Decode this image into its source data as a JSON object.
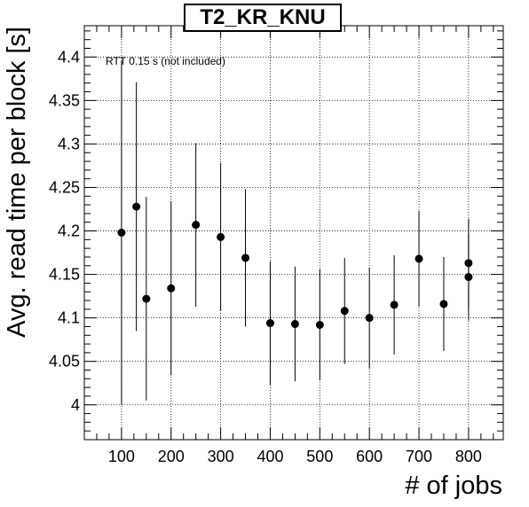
{
  "chart_data": {
    "type": "scatter",
    "title": "T2_KR_KNU",
    "xlabel": "# of jobs",
    "ylabel": "Avg. read time per block [s]",
    "annotation": "RTT 0.15 s (not included)",
    "xlim": [
      25,
      870
    ],
    "ylim": [
      3.96,
      4.436
    ],
    "xticks": [
      100,
      200,
      300,
      400,
      500,
      600,
      700,
      800
    ],
    "yticks": [
      4,
      4.05,
      4.1,
      4.15,
      4.2,
      4.25,
      4.3,
      4.35,
      4.4
    ],
    "ytick_labels": [
      "4",
      "4.05",
      "4.1",
      "4.15",
      "4.2",
      "4.25",
      "4.3",
      "4.35",
      "4.4"
    ],
    "grid": true,
    "colors": {
      "marker": "#000000",
      "grid": "#000000"
    },
    "points": [
      {
        "x": 100,
        "y": 4.198,
        "err": 0.198
      },
      {
        "x": 130,
        "y": 4.228,
        "err": 0.143
      },
      {
        "x": 150,
        "y": 4.122,
        "err": 0.117
      },
      {
        "x": 200,
        "y": 4.134,
        "err": 0.1
      },
      {
        "x": 250,
        "y": 4.207,
        "err": 0.094
      },
      {
        "x": 300,
        "y": 4.193,
        "err": 0.085
      },
      {
        "x": 350,
        "y": 4.169,
        "err": 0.079
      },
      {
        "x": 400,
        "y": 4.094,
        "err": 0.071
      },
      {
        "x": 450,
        "y": 4.093,
        "err": 0.066
      },
      {
        "x": 500,
        "y": 4.092,
        "err": 0.064
      },
      {
        "x": 550,
        "y": 4.108,
        "err": 0.061
      },
      {
        "x": 600,
        "y": 4.1,
        "err": 0.058
      },
      {
        "x": 650,
        "y": 4.115,
        "err": 0.057
      },
      {
        "x": 700,
        "y": 4.168,
        "err": 0.055
      },
      {
        "x": 750,
        "y": 4.116,
        "err": 0.054
      },
      {
        "x": 800,
        "y": 4.147,
        "err": 0.05
      },
      {
        "x": 800,
        "y": 4.163,
        "err": 0.051
      }
    ]
  }
}
